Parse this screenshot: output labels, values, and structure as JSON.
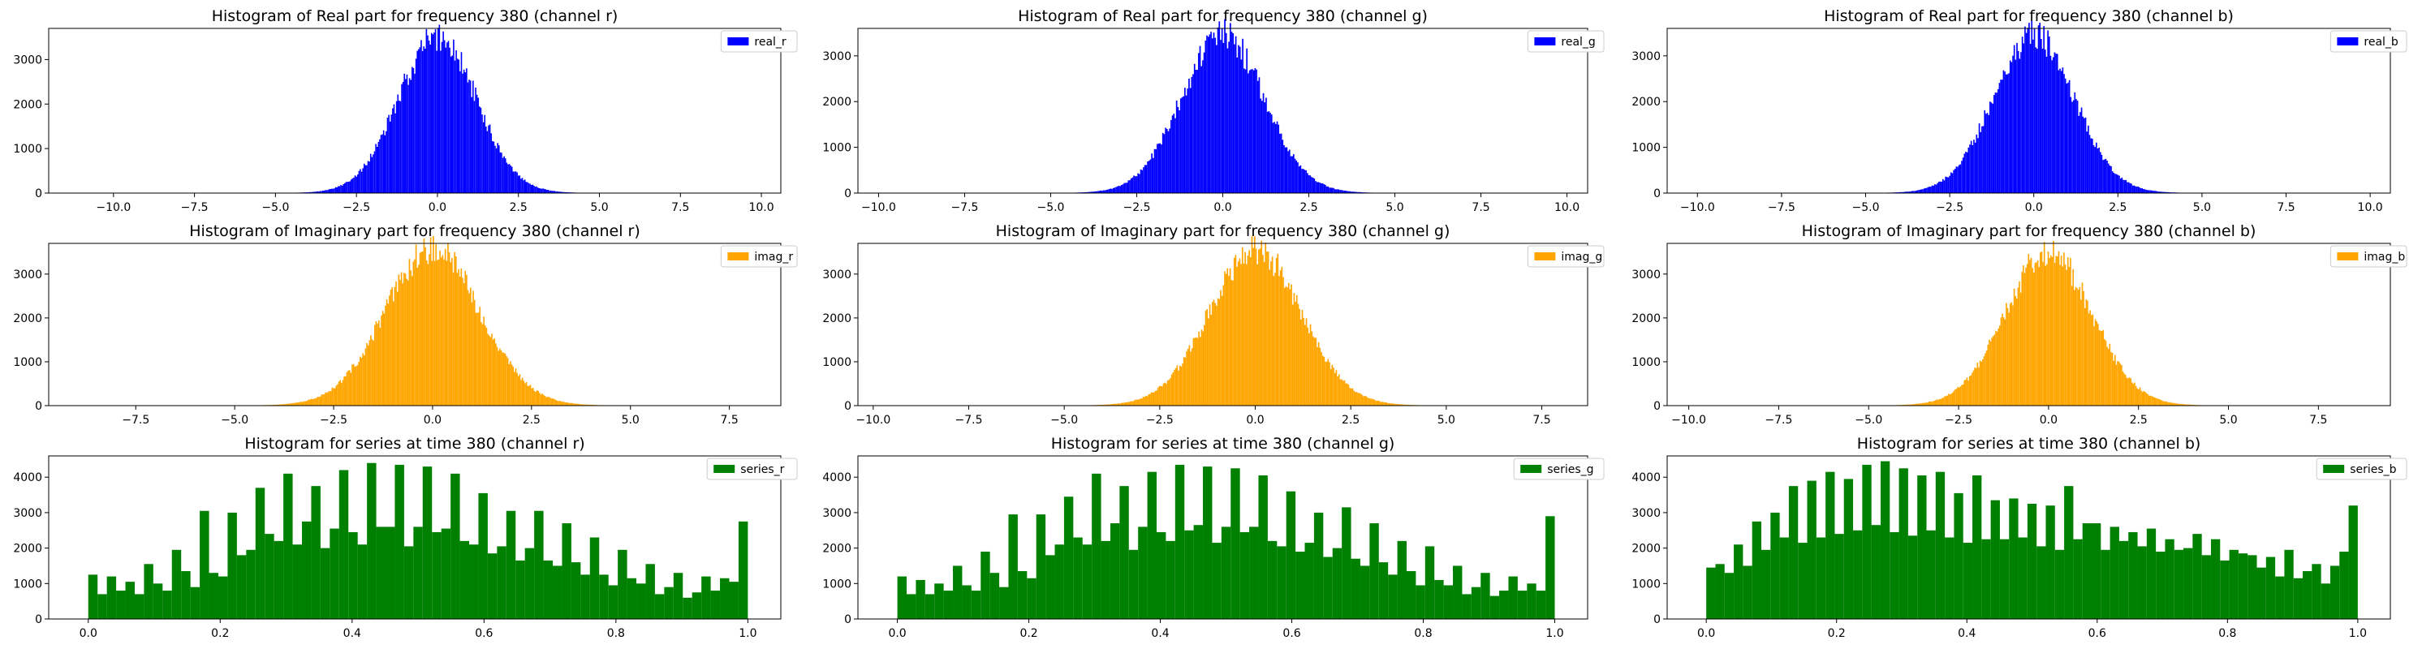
{
  "chart_data": [
    {
      "type": "bar",
      "title": "Histogram of Real part for frequency 380 (channel r)",
      "color": "#0000ff",
      "series": [
        {
          "name": "real_r"
        }
      ],
      "legend": "top-right",
      "xlim": [
        -12.0,
        10.6
      ],
      "ylim": [
        0,
        3700
      ],
      "xticks": [
        -10.0,
        -7.5,
        -5.0,
        -2.5,
        0.0,
        2.5,
        5.0,
        7.5,
        10.0
      ],
      "xtick_labels": [
        "−10.0",
        "−7.5",
        "−5.0",
        "−2.5",
        "0.0",
        "2.5",
        "5.0",
        "7.5",
        "10.0"
      ],
      "yticks": [
        0,
        1000,
        2000,
        3000
      ],
      "ytick_labels": [
        "0",
        "1000",
        "2000",
        "3000"
      ],
      "data_range": [
        -10.0,
        10.0
      ],
      "peak_center": 0.0,
      "peak_height": 3450,
      "spread": 1.2,
      "bins": 500
    },
    {
      "type": "bar",
      "title": "Histogram of Real part for frequency 380 (channel g)",
      "color": "#0000ff",
      "series": [
        {
          "name": "real_g"
        }
      ],
      "legend": "top-right",
      "xlim": [
        -10.6,
        10.6
      ],
      "ylim": [
        0,
        3600
      ],
      "xticks": [
        -10.0,
        -7.5,
        -5.0,
        -2.5,
        0.0,
        2.5,
        5.0,
        7.5,
        10.0
      ],
      "xtick_labels": [
        "−10.0",
        "−7.5",
        "−5.0",
        "−2.5",
        "0.0",
        "2.5",
        "5.0",
        "7.5",
        "10.0"
      ],
      "yticks": [
        0,
        1000,
        2000,
        3000
      ],
      "ytick_labels": [
        "0",
        "1000",
        "2000",
        "3000"
      ],
      "data_range": [
        -10.0,
        10.0
      ],
      "peak_center": 0.0,
      "peak_height": 3400,
      "spread": 1.2,
      "bins": 500
    },
    {
      "type": "bar",
      "title": "Histogram of Real part for frequency 380 (channel b)",
      "color": "#0000ff",
      "series": [
        {
          "name": "real_b"
        }
      ],
      "legend": "top-right",
      "xlim": [
        -10.9,
        10.6
      ],
      "ylim": [
        0,
        3600
      ],
      "xticks": [
        -10.0,
        -7.5,
        -5.0,
        -2.5,
        0.0,
        2.5,
        5.0,
        7.5,
        10.0
      ],
      "xtick_labels": [
        "−10.0",
        "−7.5",
        "−5.0",
        "−2.5",
        "0.0",
        "2.5",
        "5.0",
        "7.5",
        "10.0"
      ],
      "yticks": [
        0,
        1000,
        2000,
        3000
      ],
      "ytick_labels": [
        "0",
        "1000",
        "2000",
        "3000"
      ],
      "data_range": [
        -10.0,
        10.0
      ],
      "peak_center": 0.0,
      "peak_height": 3400,
      "spread": 1.2,
      "bins": 500
    },
    {
      "type": "bar",
      "title": "Histogram of Imaginary part for frequency 380 (channel r)",
      "color": "#ffa500",
      "series": [
        {
          "name": "imag_r"
        }
      ],
      "legend": "top-right",
      "xlim": [
        -9.7,
        8.8
      ],
      "ylim": [
        0,
        3700
      ],
      "xticks": [
        -7.5,
        -5.0,
        -2.5,
        0.0,
        2.5,
        5.0,
        7.5
      ],
      "xtick_labels": [
        "−7.5",
        "−5.0",
        "−2.5",
        "0.0",
        "2.5",
        "5.0",
        "7.5"
      ],
      "yticks": [
        0,
        1000,
        2000,
        3000
      ],
      "ytick_labels": [
        "0",
        "1000",
        "2000",
        "3000"
      ],
      "data_range": [
        -8.8,
        8.0
      ],
      "peak_center": 0.0,
      "peak_height": 3500,
      "spread": 1.2,
      "bins": 500
    },
    {
      "type": "bar",
      "title": "Histogram of Imaginary part for frequency 380 (channel g)",
      "color": "#ffa500",
      "series": [
        {
          "name": "imag_g"
        }
      ],
      "legend": "top-right",
      "xlim": [
        -10.4,
        8.7
      ],
      "ylim": [
        0,
        3700
      ],
      "xticks": [
        -10.0,
        -7.5,
        -5.0,
        -2.5,
        0.0,
        2.5,
        5.0,
        7.5
      ],
      "xtick_labels": [
        "−10.0",
        "−7.5",
        "−5.0",
        "−2.5",
        "0.0",
        "2.5",
        "5.0",
        "7.5"
      ],
      "yticks": [
        0,
        1000,
        2000,
        3000
      ],
      "ytick_labels": [
        "0",
        "1000",
        "2000",
        "3000"
      ],
      "data_range": [
        -10.0,
        7.8
      ],
      "peak_center": 0.0,
      "peak_height": 3500,
      "spread": 1.2,
      "bins": 500
    },
    {
      "type": "bar",
      "title": "Histogram of Imaginary part for frequency 380 (channel b)",
      "color": "#ffa500",
      "series": [
        {
          "name": "imag_b"
        }
      ],
      "legend": "top-right",
      "xlim": [
        -10.6,
        9.5
      ],
      "ylim": [
        0,
        3700
      ],
      "xticks": [
        -10.0,
        -7.5,
        -5.0,
        -2.5,
        0.0,
        2.5,
        5.0,
        7.5
      ],
      "xtick_labels": [
        "−10.0",
        "−7.5",
        "−5.0",
        "−2.5",
        "0.0",
        "2.5",
        "5.0",
        "7.5"
      ],
      "yticks": [
        0,
        1000,
        2000,
        3000
      ],
      "ytick_labels": [
        "0",
        "1000",
        "2000",
        "3000"
      ],
      "data_range": [
        -10.0,
        8.2
      ],
      "peak_center": 0.0,
      "peak_height": 3450,
      "spread": 1.2,
      "bins": 500
    },
    {
      "type": "bar",
      "title": "Histogram for series at time 380 (channel r)",
      "color": "#008000",
      "series": [
        {
          "name": "series_r"
        }
      ],
      "legend": "top-right",
      "xlim": [
        -0.06,
        1.05
      ],
      "ylim": [
        0,
        4600
      ],
      "xticks": [
        0.0,
        0.2,
        0.4,
        0.6,
        0.8,
        1.0
      ],
      "xtick_labels": [
        "0.0",
        "0.2",
        "0.4",
        "0.6",
        "0.8",
        "1.0"
      ],
      "yticks": [
        0,
        1000,
        2000,
        3000,
        4000
      ],
      "ytick_labels": [
        "0",
        "1000",
        "2000",
        "3000",
        "4000"
      ],
      "bin_range": [
        0.0,
        1.0
      ],
      "values": [
        1250,
        700,
        1200,
        800,
        1050,
        700,
        1550,
        1000,
        800,
        1950,
        1350,
        900,
        3050,
        1300,
        1200,
        3000,
        1800,
        1950,
        3700,
        2400,
        2200,
        4100,
        2100,
        2750,
        3750,
        2000,
        2550,
        4200,
        2450,
        2100,
        4400,
        2600,
        2600,
        4350,
        2050,
        2600,
        4300,
        2450,
        2550,
        4100,
        2200,
        2100,
        3550,
        1850,
        2050,
        3050,
        1650,
        2000,
        3050,
        1650,
        1500,
        2700,
        1600,
        1250,
        2300,
        1250,
        950,
        1950,
        1150,
        1000,
        1550,
        700,
        900,
        1300,
        600,
        750,
        1200,
        800,
        1150,
        1050,
        2750
      ]
    },
    {
      "type": "bar",
      "title": "Histogram for series at time 380 (channel g)",
      "color": "#008000",
      "series": [
        {
          "name": "series_g"
        }
      ],
      "legend": "top-right",
      "xlim": [
        -0.06,
        1.05
      ],
      "ylim": [
        0,
        4600
      ],
      "xticks": [
        0.0,
        0.2,
        0.4,
        0.6,
        0.8,
        1.0
      ],
      "xtick_labels": [
        "0.0",
        "0.2",
        "0.4",
        "0.6",
        "0.8",
        "1.0"
      ],
      "yticks": [
        0,
        1000,
        2000,
        3000,
        4000
      ],
      "ytick_labels": [
        "0",
        "1000",
        "2000",
        "3000",
        "4000"
      ],
      "bin_range": [
        0.0,
        1.0
      ],
      "values": [
        1200,
        700,
        1100,
        700,
        1000,
        800,
        1500,
        950,
        800,
        1900,
        1300,
        900,
        2950,
        1350,
        1150,
        2950,
        1800,
        2100,
        3450,
        2300,
        2100,
        4100,
        2200,
        2700,
        3750,
        1950,
        2600,
        4150,
        2450,
        2200,
        4350,
        2500,
        2650,
        4300,
        2150,
        2600,
        4250,
        2450,
        2600,
        4050,
        2200,
        2050,
        3600,
        1900,
        2150,
        3000,
        1750,
        2000,
        3150,
        1700,
        1500,
        2700,
        1600,
        1250,
        2200,
        1350,
        950,
        2050,
        1100,
        950,
        1500,
        700,
        900,
        1300,
        650,
        800,
        1200,
        800,
        1000,
        800,
        2900
      ]
    },
    {
      "type": "bar",
      "title": "Histogram for series at time 380 (channel b)",
      "color": "#008000",
      "series": [
        {
          "name": "series_b"
        }
      ],
      "legend": "top-right",
      "xlim": [
        -0.06,
        1.05
      ],
      "ylim": [
        0,
        4600
      ],
      "xticks": [
        0.0,
        0.2,
        0.4,
        0.6,
        0.8,
        1.0
      ],
      "xtick_labels": [
        "0.0",
        "0.2",
        "0.4",
        "0.6",
        "0.8",
        "1.0"
      ],
      "yticks": [
        0,
        1000,
        2000,
        3000,
        4000
      ],
      "ytick_labels": [
        "0",
        "1000",
        "2000",
        "3000",
        "4000"
      ],
      "bin_range": [
        0.0,
        1.0
      ],
      "values": [
        1450,
        1550,
        1300,
        2100,
        1500,
        2750,
        1950,
        3000,
        2300,
        3750,
        2150,
        3900,
        2300,
        4150,
        2400,
        3950,
        2500,
        4350,
        2650,
        4450,
        2450,
        4250,
        2350,
        4050,
        2500,
        4150,
        2300,
        3550,
        2150,
        4050,
        2250,
        3350,
        2250,
        3400,
        2300,
        3250,
        2050,
        3200,
        1950,
        3750,
        2250,
        2700,
        2700,
        1950,
        2600,
        2200,
        2450,
        2050,
        2550,
        1900,
        2250,
        1950,
        2000,
        2400,
        1800,
        2250,
        1650,
        1950,
        1850,
        1800,
        1450,
        1750,
        1200,
        1950,
        1150,
        1350,
        1550,
        1000,
        1500,
        1900,
        3200
      ]
    }
  ]
}
